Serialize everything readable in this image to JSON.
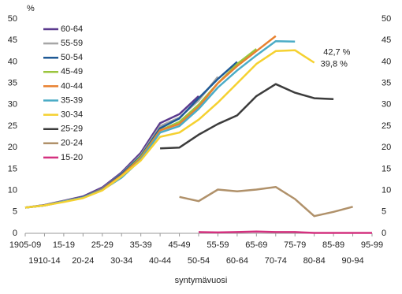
{
  "chart_data": {
    "type": "line",
    "y_label": "%",
    "x_label": "syntymävuosi",
    "categories": [
      "1905-09",
      "1910-14",
      "15-19",
      "20-24",
      "25-29",
      "30-34",
      "35-39",
      "40-44",
      "45-49",
      "50-54",
      "55-59",
      "60-64",
      "65-69",
      "70-74",
      "75-79",
      "80-84",
      "85-89",
      "90-94",
      "95-99"
    ],
    "ylim": [
      0,
      50
    ],
    "yticks": [
      0,
      5,
      10,
      15,
      20,
      25,
      30,
      35,
      40,
      45,
      50
    ],
    "legend": "upper left",
    "series": [
      {
        "name": "60-64",
        "color": "#5b3a8e",
        "values": [
          6.0,
          6.6,
          7.6,
          8.6,
          10.7,
          14.2,
          18.8,
          25.7,
          27.8,
          32.0,
          null,
          null,
          null,
          null,
          null,
          null,
          null,
          null,
          null
        ]
      },
      {
        "name": "55-59",
        "color": "#a6a6a6",
        "values": [
          6.0,
          6.5,
          7.5,
          8.4,
          10.4,
          13.9,
          18.3,
          25.0,
          27.0,
          31.0,
          36.5,
          null,
          null,
          null,
          null,
          null,
          null,
          null,
          null
        ]
      },
      {
        "name": "50-54",
        "color": "#1f5a96",
        "values": [
          6.0,
          6.5,
          7.4,
          8.4,
          10.3,
          13.8,
          18.0,
          24.5,
          26.8,
          31.5,
          36.0,
          40.0,
          null,
          null,
          null,
          null,
          null,
          null,
          null
        ]
      },
      {
        "name": "45-49",
        "color": "#9bc53d",
        "values": [
          6.0,
          6.5,
          7.4,
          8.3,
          10.2,
          13.5,
          17.8,
          24.0,
          26.0,
          30.0,
          35.0,
          39.5,
          43.0,
          null,
          null,
          null,
          null,
          null,
          null
        ]
      },
      {
        "name": "40-44",
        "color": "#e8812f",
        "values": [
          6.0,
          6.5,
          7.4,
          8.3,
          10.2,
          13.5,
          17.5,
          24.0,
          25.5,
          29.5,
          35.0,
          39.0,
          42.5,
          46.0,
          null,
          null,
          null,
          null,
          null
        ]
      },
      {
        "name": "35-39",
        "color": "#4bacc6",
        "values": [
          6.0,
          6.5,
          7.4,
          8.3,
          10.1,
          13.0,
          17.2,
          23.5,
          25.0,
          29.0,
          34.0,
          38.0,
          41.5,
          44.8,
          44.7,
          null,
          null,
          null,
          null
        ]
      },
      {
        "name": "30-34",
        "color": "#f5d130",
        "values": [
          6.0,
          6.5,
          7.3,
          8.2,
          10.0,
          13.3,
          17.0,
          22.5,
          23.5,
          26.5,
          30.5,
          35.0,
          39.5,
          42.5,
          42.7,
          39.8,
          null,
          null,
          null
        ],
        "value_labels": [
          null,
          null,
          null,
          null,
          null,
          null,
          null,
          null,
          null,
          null,
          null,
          null,
          null,
          null,
          "42,7 %",
          "39,8 %",
          null,
          null,
          null
        ]
      },
      {
        "name": "25-29",
        "color": "#3c3c3c",
        "values": [
          null,
          null,
          null,
          null,
          null,
          null,
          null,
          19.8,
          20.0,
          23.0,
          25.5,
          27.5,
          32.0,
          34.8,
          32.8,
          31.5,
          31.3,
          null,
          null
        ]
      },
      {
        "name": "20-24",
        "color": "#b0916a",
        "values": [
          null,
          null,
          null,
          null,
          null,
          null,
          null,
          null,
          8.5,
          7.5,
          10.2,
          9.8,
          10.2,
          10.8,
          8.0,
          4.0,
          5.0,
          6.2,
          null
        ]
      },
      {
        "name": "15-20",
        "color": "#d4317f",
        "values": [
          null,
          null,
          null,
          null,
          null,
          null,
          null,
          null,
          null,
          0.3,
          0.2,
          0.3,
          0.4,
          0.3,
          0.3,
          0.1,
          0.1,
          0.1,
          0.1
        ]
      }
    ]
  }
}
